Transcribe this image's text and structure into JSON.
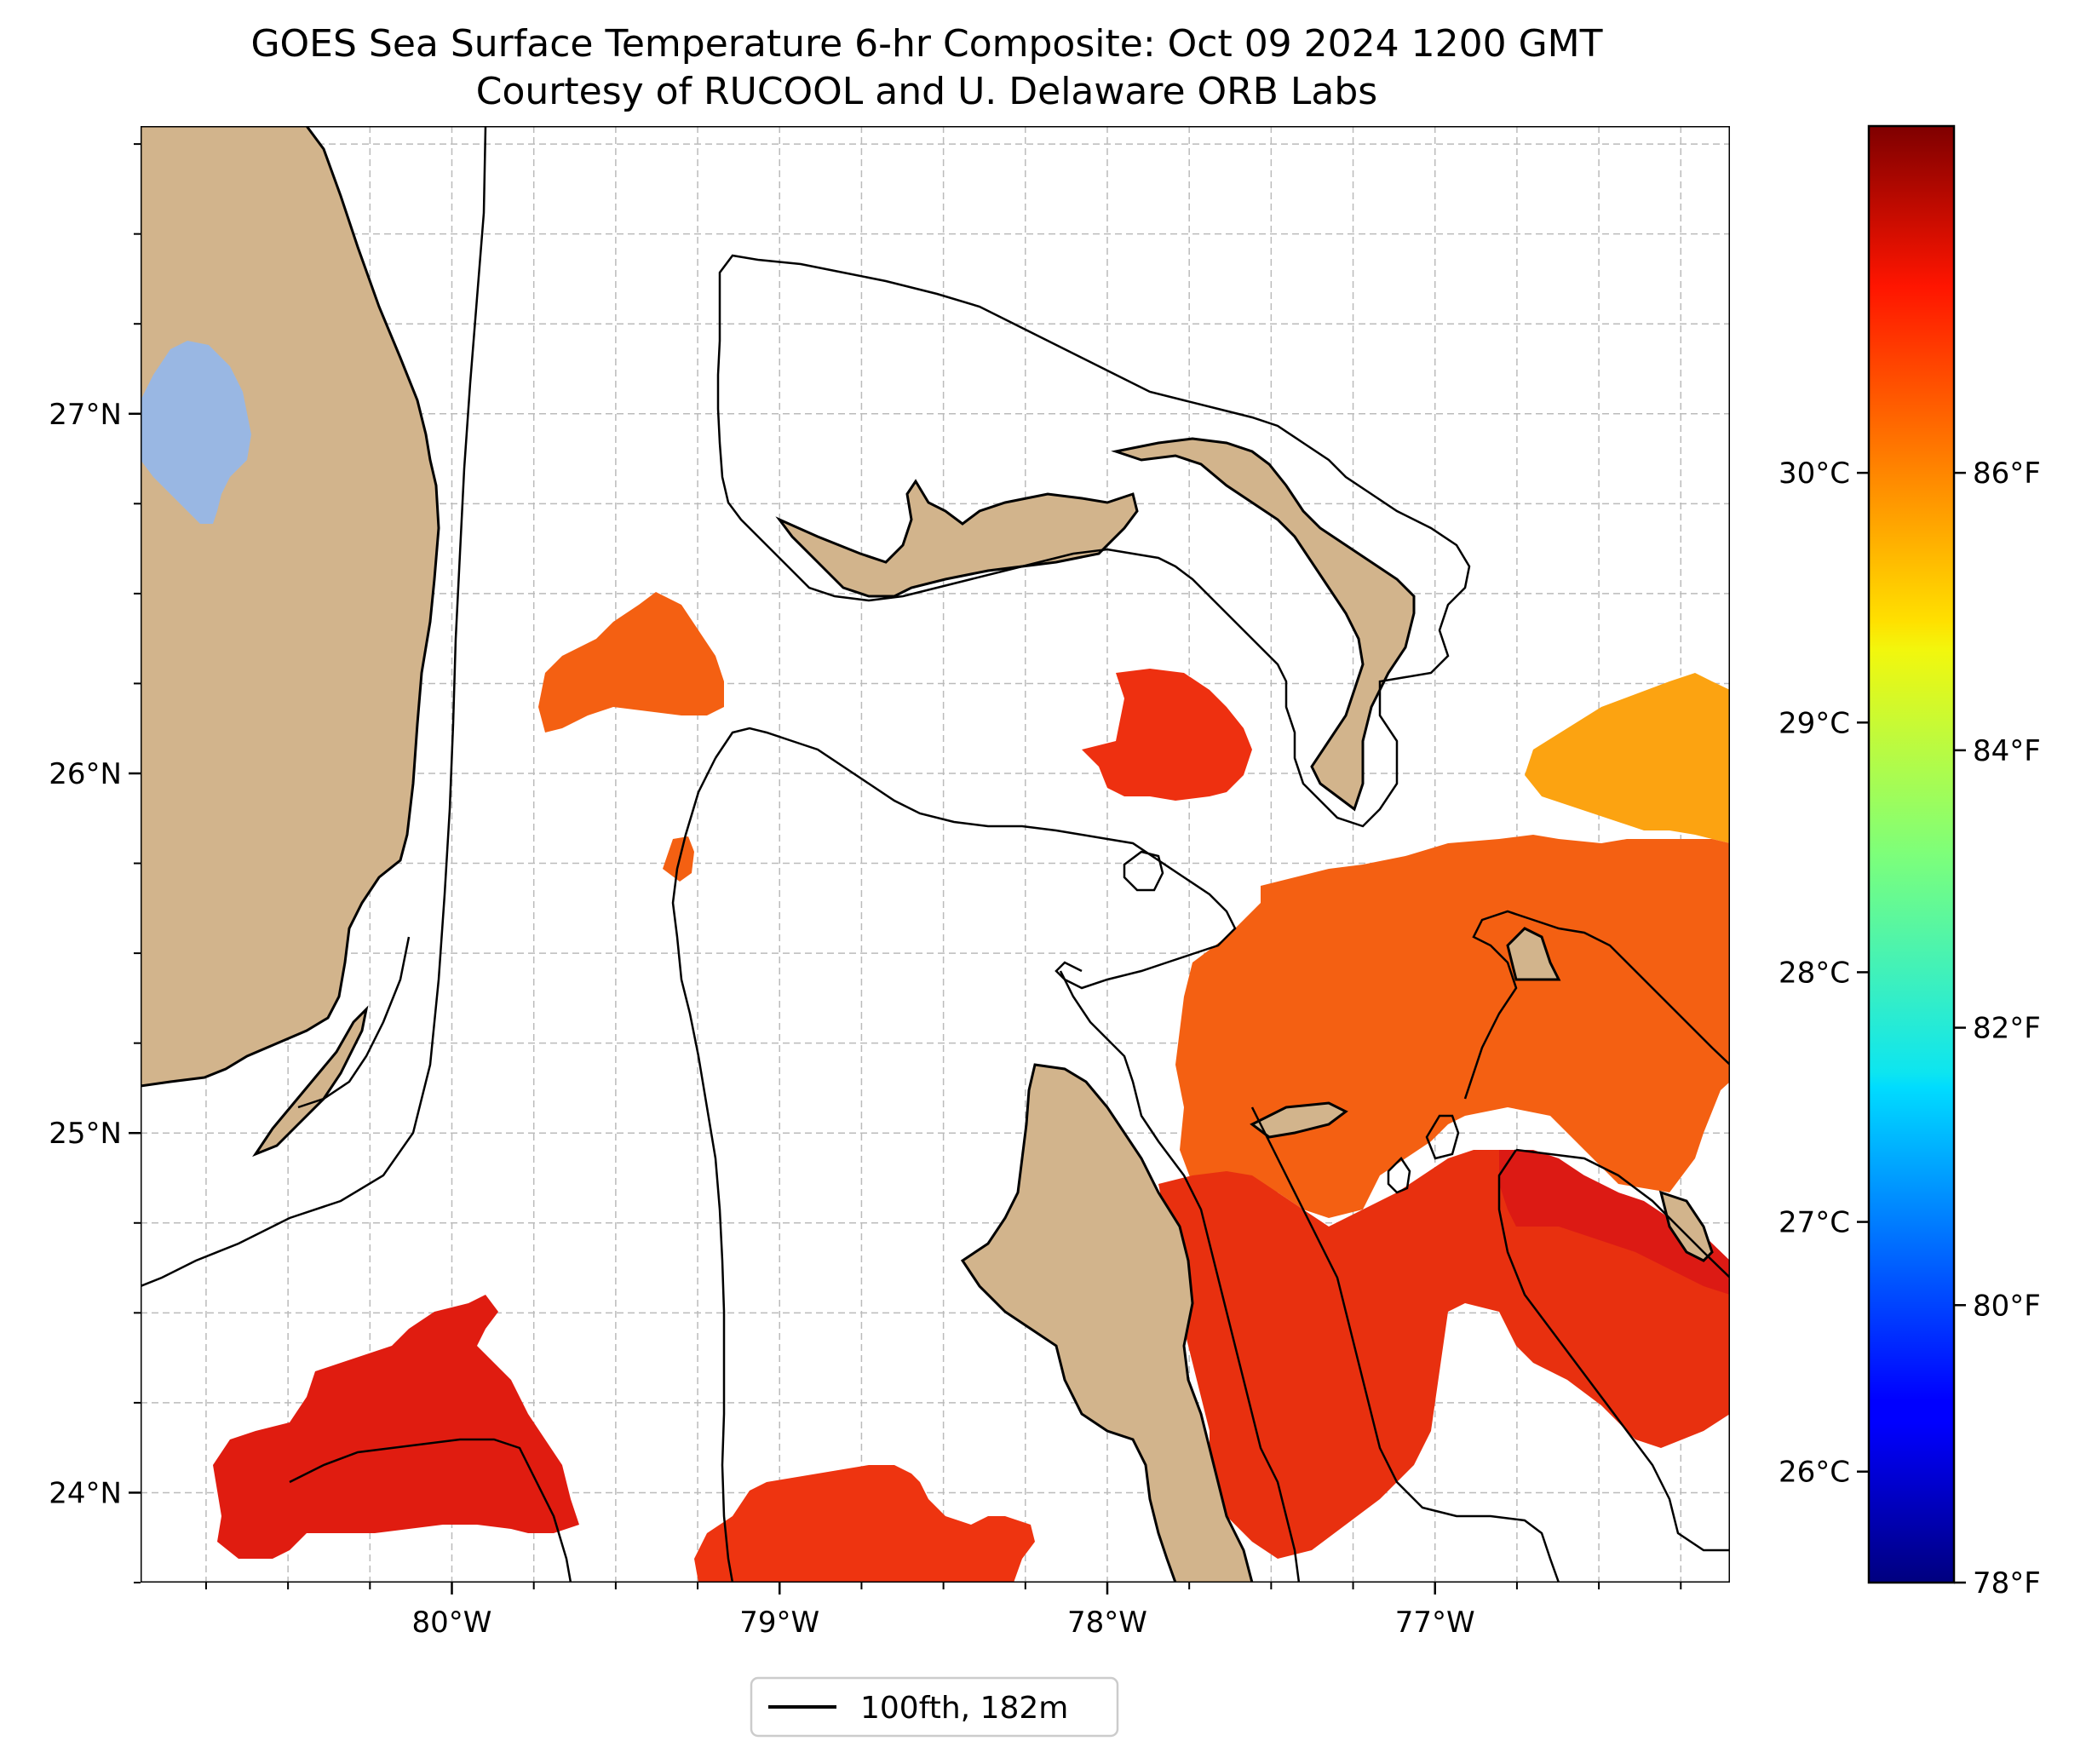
{
  "title_line1": "GOES Sea Surface Temperature 6-hr Composite: Oct 09 2024 1200 GMT",
  "title_line2": "Courtesy of RUCOOL and U. Delaware ORB Labs",
  "map": {
    "lon_range": [
      -80.95,
      -76.1
    ],
    "lat_range": [
      23.75,
      27.8
    ],
    "lon_ticks": [
      {
        "value": -80,
        "label": "80°W"
      },
      {
        "value": -79,
        "label": "79°W"
      },
      {
        "value": -78,
        "label": "78°W"
      },
      {
        "value": -77,
        "label": "77°W"
      }
    ],
    "lat_ticks": [
      {
        "value": 24,
        "label": "24°N"
      },
      {
        "value": 25,
        "label": "25°N"
      },
      {
        "value": 26,
        "label": "26°N"
      },
      {
        "value": 27,
        "label": "27°N"
      }
    ],
    "minor_lon_step": 0.25,
    "minor_lat_step": 0.25,
    "gridlines": true,
    "colors": {
      "land": "#d2b48c",
      "lake": "#99b7e3",
      "grid": "#bbbbbb",
      "sst_warm_red": "#e8260f",
      "sst_orange": "#f46012",
      "sst_amber": "#fca311"
    }
  },
  "colorbar": {
    "colormap": "jet",
    "celsius_ticks": [
      {
        "value": 26,
        "label": "26°C"
      },
      {
        "value": 27,
        "label": "27°C"
      },
      {
        "value": 28,
        "label": "28°C"
      },
      {
        "value": 29,
        "label": "29°C"
      },
      {
        "value": 30,
        "label": "30°C"
      }
    ],
    "fahrenheit_ticks": [
      {
        "value": 78,
        "label": "78°F"
      },
      {
        "value": 80,
        "label": "80°F"
      },
      {
        "value": 82,
        "label": "82°F"
      },
      {
        "value": 84,
        "label": "84°F"
      },
      {
        "value": 86,
        "label": "86°F"
      }
    ]
  },
  "legend": {
    "entries": [
      {
        "label": "100fth, 182m"
      }
    ]
  }
}
